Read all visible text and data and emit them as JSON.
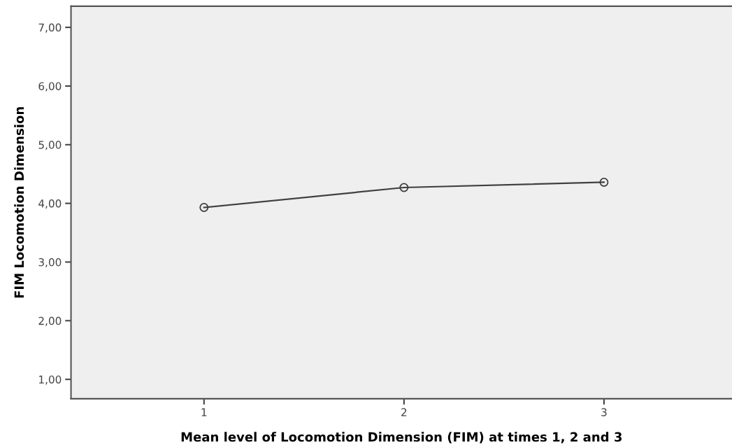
{
  "chart_data": {
    "type": "line",
    "xlabel": "Mean level of Locomotion Dimension (FIM) at times 1, 2 and 3",
    "ylabel": "FIM Locomotion Dimension",
    "x": [
      1,
      2,
      3
    ],
    "series": [
      {
        "color": "#404040",
        "values": [
          3.93,
          4.27,
          4.36
        ]
      }
    ],
    "marker": "circle",
    "line_style": "solid",
    "xlim": [
      0.335,
      3.64
    ],
    "xticks": [
      1,
      2,
      3
    ],
    "ylim": [
      0.67,
      7.36
    ],
    "yticks": [
      {
        "value": 1,
        "label": "1,00"
      },
      {
        "value": 2,
        "label": "2,00"
      },
      {
        "value": 3,
        "label": "3,00"
      },
      {
        "value": 4,
        "label": "4,00"
      },
      {
        "value": 5,
        "label": "5,00"
      },
      {
        "value": 6,
        "label": "6,00"
      },
      {
        "value": 7,
        "label": "7,00"
      }
    ],
    "grid": false
  }
}
